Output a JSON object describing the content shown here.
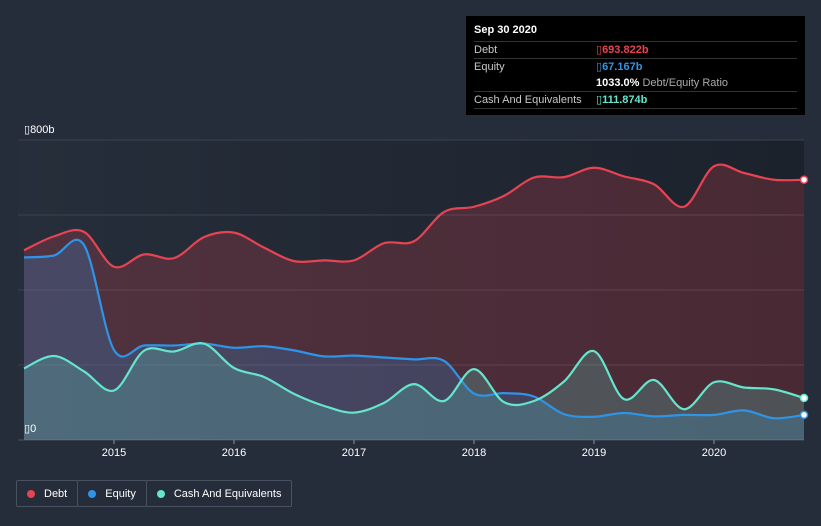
{
  "colors": {
    "debt": "#e64452",
    "equity": "#2f94e6",
    "cash": "#64e5cc"
  },
  "tooltip": {
    "date": "Sep 30 2020",
    "debt_label": "Debt",
    "debt_value": "693.822b",
    "equity_label": "Equity",
    "equity_value": "67.167b",
    "ratio_value": "1033.0%",
    "ratio_label": "Debt/Equity Ratio",
    "cash_label": "Cash And Equivalents",
    "cash_value": "111.874b"
  },
  "legend": {
    "debt": "Debt",
    "equity": "Equity",
    "cash": "Cash And Equivalents"
  },
  "chart_data": {
    "type": "area",
    "title": "",
    "xlabel": "",
    "ylabel": "",
    "y_top_label": "800b",
    "y_zero_label": "0",
    "ylim": [
      0,
      800
    ],
    "xlim": [
      2014.2,
      2020.75
    ],
    "x_ticks": [
      2015,
      2016,
      2017,
      2018,
      2019,
      2020
    ],
    "x_tick_labels": [
      "2015",
      "2016",
      "2017",
      "2018",
      "2019",
      "2020"
    ],
    "series": [
      {
        "name": "Debt",
        "x": [
          2014.25,
          2014.5,
          2014.75,
          2015.0,
          2015.25,
          2015.5,
          2015.75,
          2016.0,
          2016.25,
          2016.5,
          2016.75,
          2017.0,
          2017.25,
          2017.5,
          2017.75,
          2018.0,
          2018.25,
          2018.5,
          2018.75,
          2019.0,
          2019.25,
          2019.5,
          2019.75,
          2020.0,
          2020.25,
          2020.5,
          2020.75
        ],
        "values": [
          506,
          543,
          555,
          462,
          495,
          485,
          541,
          553,
          513,
          477,
          479,
          479,
          525,
          530,
          608,
          622,
          651,
          700,
          701,
          726,
          703,
          682,
          622,
          730,
          712,
          694,
          694
        ]
      },
      {
        "name": "Equity",
        "x": [
          2014.25,
          2014.5,
          2014.75,
          2015.0,
          2015.25,
          2015.5,
          2015.75,
          2016.0,
          2016.25,
          2016.5,
          2016.75,
          2017.0,
          2017.25,
          2017.5,
          2017.75,
          2018.0,
          2018.25,
          2018.5,
          2018.75,
          2019.0,
          2019.25,
          2019.5,
          2019.75,
          2020.0,
          2020.25,
          2020.5,
          2020.75
        ],
        "values": [
          487,
          492,
          520,
          240,
          252,
          252,
          257,
          246,
          250,
          239,
          223,
          225,
          220,
          215,
          211,
          124,
          125,
          116,
          69,
          62,
          72,
          63,
          67,
          67,
          79,
          58,
          67
        ]
      },
      {
        "name": "Cash And Equivalents",
        "x": [
          2014.25,
          2014.5,
          2014.75,
          2015.0,
          2015.25,
          2015.5,
          2015.75,
          2016.0,
          2016.25,
          2016.5,
          2016.75,
          2017.0,
          2017.25,
          2017.5,
          2017.75,
          2018.0,
          2018.25,
          2018.5,
          2018.75,
          2019.0,
          2019.25,
          2019.5,
          2019.75,
          2020.0,
          2020.25,
          2020.5,
          2020.75
        ],
        "values": [
          191,
          224,
          183,
          132,
          238,
          236,
          257,
          192,
          168,
          123,
          91,
          73,
          99,
          149,
          104,
          189,
          101,
          104,
          156,
          237,
          109,
          160,
          82,
          154,
          140,
          135,
          112
        ]
      }
    ]
  }
}
